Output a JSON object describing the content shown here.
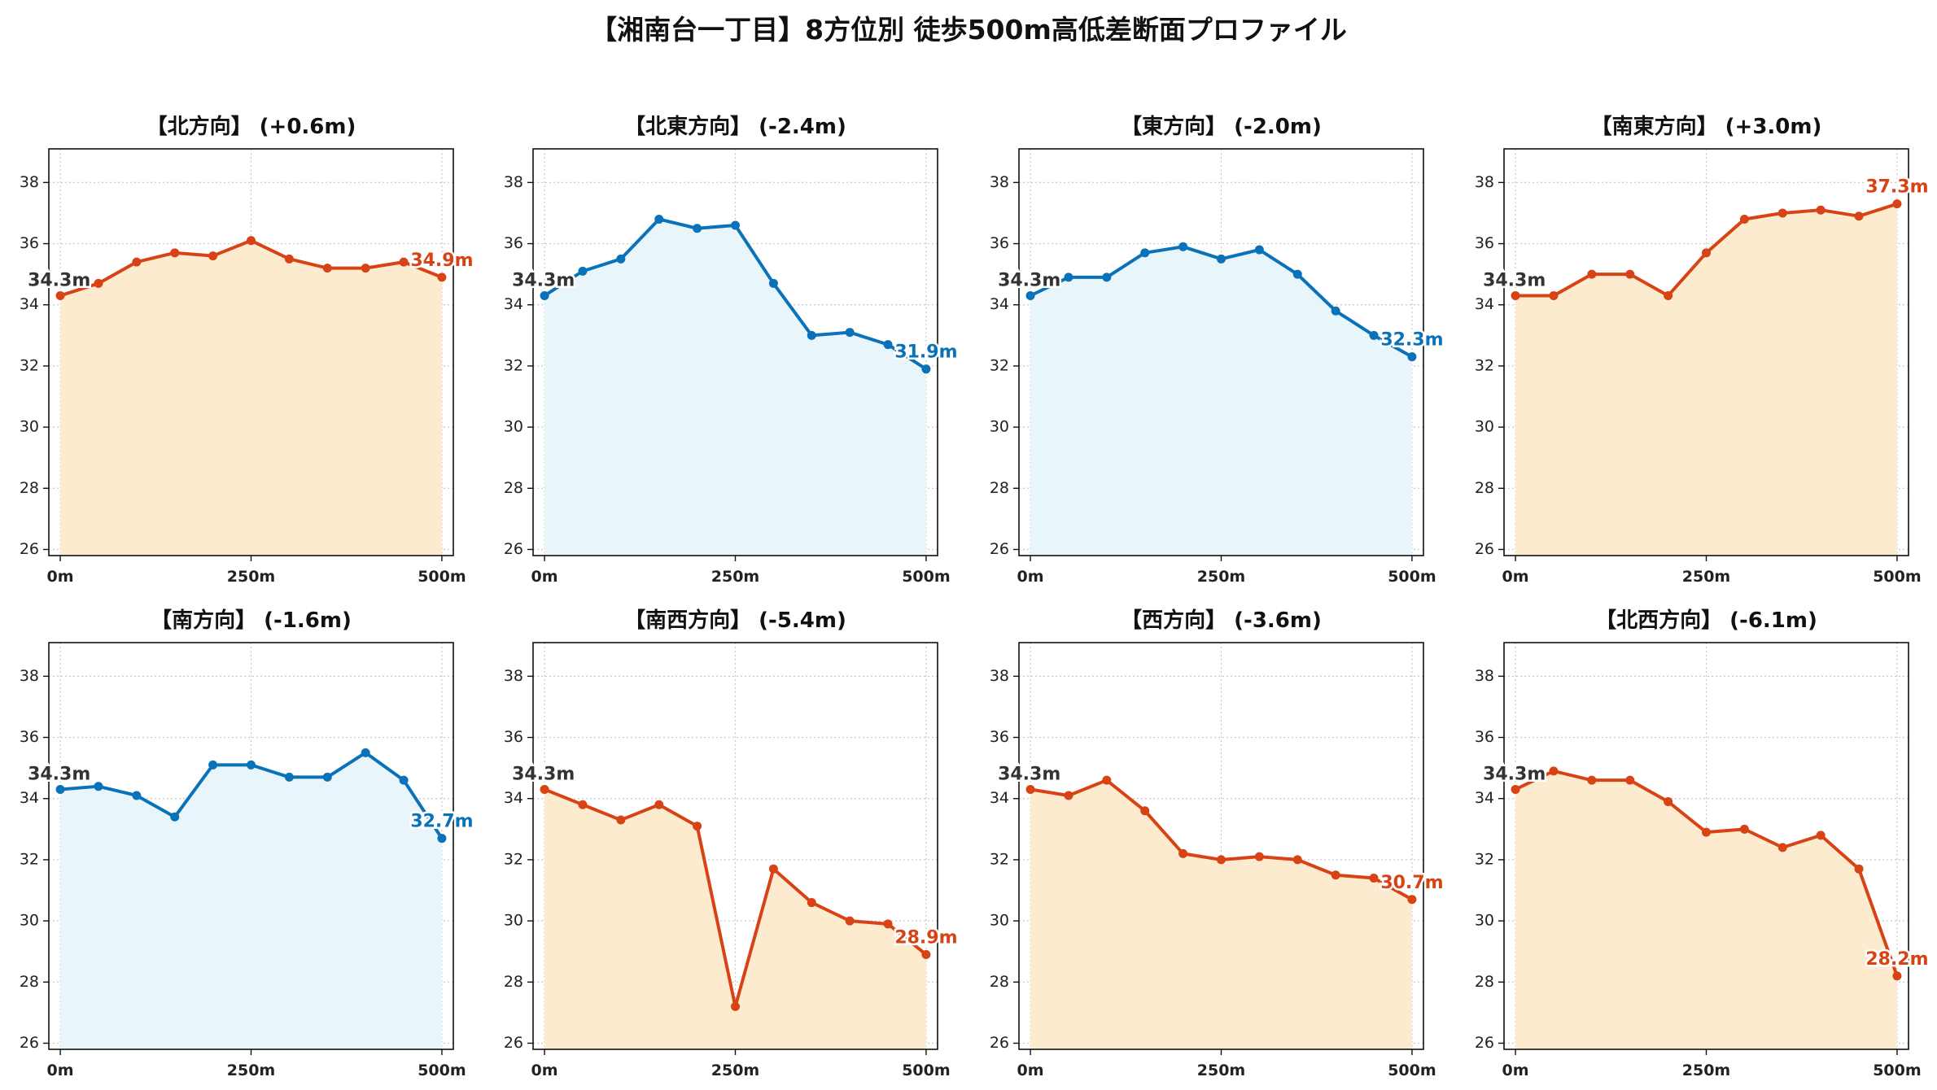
{
  "title": "【湘南台一丁目】8方位別 徒歩500m高低差断面プロファイル",
  "colors": {
    "up_line": "#d84315",
    "up_fill": "#fdebd0",
    "down_line": "#0a72b8",
    "down_fill": "#e8f5fb",
    "start_label": "#333333",
    "grid": "#c8c8c8"
  },
  "chart_data": [
    {
      "type": "area",
      "title": "【北方向】 (+0.6m)",
      "trend": "up",
      "x": [
        0,
        50,
        100,
        150,
        200,
        250,
        300,
        350,
        400,
        450,
        500
      ],
      "y": [
        34.3,
        34.7,
        35.4,
        35.7,
        35.6,
        36.1,
        35.5,
        35.2,
        35.2,
        35.4,
        34.9
      ],
      "x_tick_labels": [
        "0m",
        "250m",
        "500m"
      ],
      "y_ticks": [
        26,
        28,
        30,
        32,
        34,
        36,
        38
      ],
      "ylim": [
        25.8,
        39.1
      ],
      "xlim": [
        -15,
        515
      ],
      "grid": true,
      "start_label": "34.3m",
      "end_label": "34.9m"
    },
    {
      "type": "area",
      "title": "【北東方向】 (-2.4m)",
      "trend": "down",
      "x": [
        0,
        50,
        100,
        150,
        200,
        250,
        300,
        350,
        400,
        450,
        500
      ],
      "y": [
        34.3,
        35.1,
        35.5,
        36.8,
        36.5,
        36.6,
        34.7,
        33.0,
        33.1,
        32.7,
        31.9
      ],
      "x_tick_labels": [
        "0m",
        "250m",
        "500m"
      ],
      "y_ticks": [
        26,
        28,
        30,
        32,
        34,
        36,
        38
      ],
      "ylim": [
        25.8,
        39.1
      ],
      "xlim": [
        -15,
        515
      ],
      "grid": true,
      "start_label": "34.3m",
      "end_label": "31.9m"
    },
    {
      "type": "area",
      "title": "【東方向】 (-2.0m)",
      "trend": "down",
      "x": [
        0,
        50,
        100,
        150,
        200,
        250,
        300,
        350,
        400,
        450,
        500
      ],
      "y": [
        34.3,
        34.9,
        34.9,
        35.7,
        35.9,
        35.5,
        35.8,
        35.0,
        33.8,
        33.0,
        32.3
      ],
      "x_tick_labels": [
        "0m",
        "250m",
        "500m"
      ],
      "y_ticks": [
        26,
        28,
        30,
        32,
        34,
        36,
        38
      ],
      "ylim": [
        25.8,
        39.1
      ],
      "xlim": [
        -15,
        515
      ],
      "grid": true,
      "start_label": "34.3m",
      "end_label": "32.3m"
    },
    {
      "type": "area",
      "title": "【南東方向】 (+3.0m)",
      "trend": "up",
      "x": [
        0,
        50,
        100,
        150,
        200,
        250,
        300,
        350,
        400,
        450,
        500
      ],
      "y": [
        34.3,
        34.3,
        35.0,
        35.0,
        34.3,
        35.7,
        36.8,
        37.0,
        37.1,
        36.9,
        37.3
      ],
      "x_tick_labels": [
        "0m",
        "250m",
        "500m"
      ],
      "y_ticks": [
        26,
        28,
        30,
        32,
        34,
        36,
        38
      ],
      "ylim": [
        25.8,
        39.1
      ],
      "xlim": [
        -15,
        515
      ],
      "grid": true,
      "start_label": "34.3m",
      "end_label": "37.3m"
    },
    {
      "type": "area",
      "title": "【南方向】 (-1.6m)",
      "trend": "down",
      "x": [
        0,
        50,
        100,
        150,
        200,
        250,
        300,
        350,
        400,
        450,
        500
      ],
      "y": [
        34.3,
        34.4,
        34.1,
        33.4,
        35.1,
        35.1,
        34.7,
        34.7,
        35.5,
        34.6,
        32.7
      ],
      "x_tick_labels": [
        "0m",
        "250m",
        "500m"
      ],
      "y_ticks": [
        26,
        28,
        30,
        32,
        34,
        36,
        38
      ],
      "ylim": [
        25.8,
        39.1
      ],
      "xlim": [
        -15,
        515
      ],
      "grid": true,
      "start_label": "34.3m",
      "end_label": "32.7m"
    },
    {
      "type": "area",
      "title": "【南西方向】 (-5.4m)",
      "trend": "up",
      "x": [
        0,
        50,
        100,
        150,
        200,
        250,
        300,
        350,
        400,
        450,
        500
      ],
      "y": [
        34.3,
        33.8,
        33.3,
        33.8,
        33.1,
        27.2,
        31.7,
        30.6,
        30.0,
        29.9,
        28.9
      ],
      "x_tick_labels": [
        "0m",
        "250m",
        "500m"
      ],
      "y_ticks": [
        26,
        28,
        30,
        32,
        34,
        36,
        38
      ],
      "ylim": [
        25.8,
        39.1
      ],
      "xlim": [
        -15,
        515
      ],
      "grid": true,
      "start_label": "34.3m",
      "end_label": "28.9m"
    },
    {
      "type": "area",
      "title": "【西方向】 (-3.6m)",
      "trend": "up",
      "x": [
        0,
        50,
        100,
        150,
        200,
        250,
        300,
        350,
        400,
        450,
        500
      ],
      "y": [
        34.3,
        34.1,
        34.6,
        33.6,
        32.2,
        32.0,
        32.1,
        32.0,
        31.5,
        31.4,
        30.7
      ],
      "x_tick_labels": [
        "0m",
        "250m",
        "500m"
      ],
      "y_ticks": [
        26,
        28,
        30,
        32,
        34,
        36,
        38
      ],
      "ylim": [
        25.8,
        39.1
      ],
      "xlim": [
        -15,
        515
      ],
      "grid": true,
      "start_label": "34.3m",
      "end_label": "30.7m"
    },
    {
      "type": "area",
      "title": "【北西方向】 (-6.1m)",
      "trend": "up",
      "x": [
        0,
        50,
        100,
        150,
        200,
        250,
        300,
        350,
        400,
        450,
        500
      ],
      "y": [
        34.3,
        34.9,
        34.6,
        34.6,
        33.9,
        32.9,
        33.0,
        32.4,
        32.8,
        31.7,
        28.2
      ],
      "x_tick_labels": [
        "0m",
        "250m",
        "500m"
      ],
      "y_ticks": [
        26,
        28,
        30,
        32,
        34,
        36,
        38
      ],
      "ylim": [
        25.8,
        39.1
      ],
      "xlim": [
        -15,
        515
      ],
      "grid": true,
      "start_label": "34.3m",
      "end_label": "28.2m"
    }
  ]
}
